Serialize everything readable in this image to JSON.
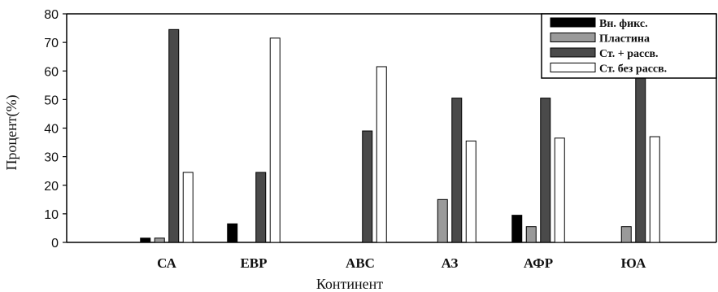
{
  "chart_data": {
    "type": "bar",
    "xlabel": "Континент",
    "ylabel": "Процент(%)",
    "ylim": [
      0,
      80
    ],
    "yticks": [
      0,
      10,
      20,
      30,
      40,
      50,
      60,
      70,
      80
    ],
    "grid": false,
    "legend_position": "top-right",
    "categories": [
      "СА",
      "ЕВР",
      "АВС",
      "АЗ",
      "АФР",
      "ЮА"
    ],
    "series": [
      {
        "name": "Вн. фикс.",
        "color": "#000000",
        "values": [
          1.5,
          6.5,
          0,
          0,
          9.5,
          0
        ]
      },
      {
        "name": "Пластина",
        "color": "#9a9a9a",
        "values": [
          1.5,
          0,
          0,
          15,
          5.5,
          5.5
        ]
      },
      {
        "name": "Ст. + рассв.",
        "color": "#4a4a4a",
        "values": [
          74.5,
          24.5,
          39,
          50.5,
          50.5,
          58
        ]
      },
      {
        "name": "Ст. без рассв.",
        "color": "#ffffff",
        "values": [
          24.5,
          71.5,
          61.5,
          35.5,
          36.5,
          37
        ]
      }
    ]
  }
}
